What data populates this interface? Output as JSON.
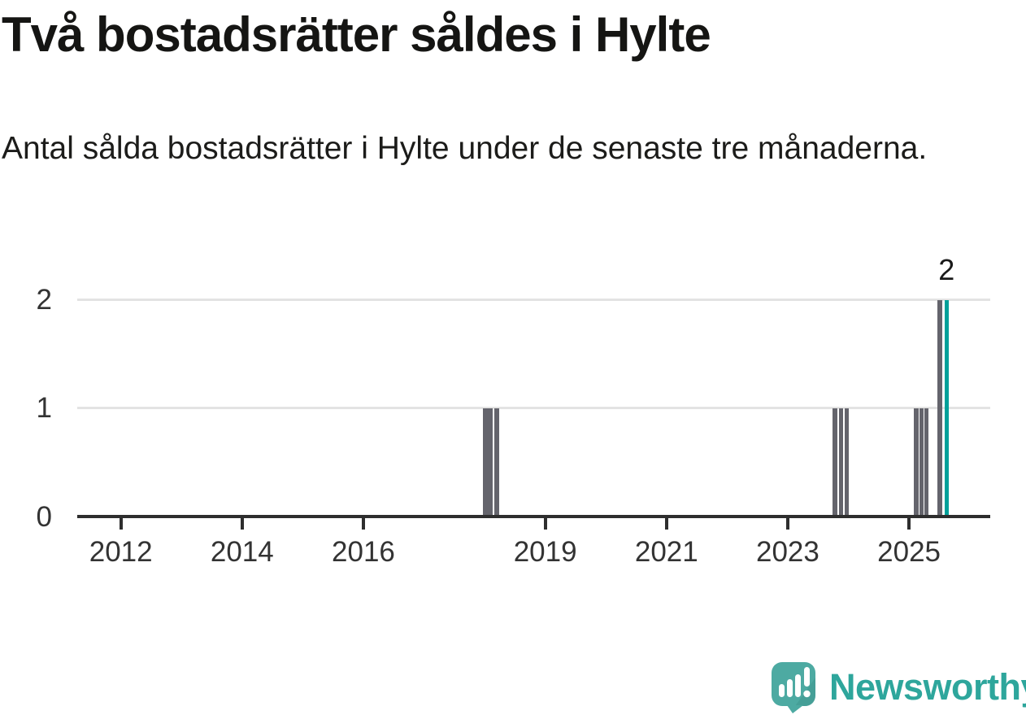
{
  "header": {
    "title": "Två bostadsrätter såldes i Hylte",
    "subtitle": "Antal sålda bostadsrätter i Hylte under de senaste tre månaderna."
  },
  "chart_data": {
    "type": "bar",
    "title": "Två bostadsrätter såldes i Hylte",
    "subtitle": "Antal sålda bostadsrätter i Hylte under de senaste tre månaderna.",
    "x_range": [
      2011.28,
      2026.34
    ],
    "ylim": [
      0,
      2.37
    ],
    "grid": "horizontal",
    "legend": "none",
    "y_ticks": [
      0,
      1,
      2
    ],
    "x_tick_labels": [
      "2012",
      "2014",
      "2016",
      "2019",
      "2021",
      "2023",
      "2025"
    ],
    "x_tick_years": [
      2012,
      2014,
      2016,
      2019,
      2021,
      2023,
      2025
    ],
    "bars": [
      {
        "x_year": 2018.05,
        "months": 2,
        "value": 1,
        "highlight": false
      },
      {
        "x_year": 2018.2,
        "months": 1,
        "value": 1,
        "highlight": false
      },
      {
        "x_year": 2023.78,
        "months": 1,
        "value": 1,
        "highlight": false
      },
      {
        "x_year": 2023.88,
        "months": 1,
        "value": 1,
        "highlight": false
      },
      {
        "x_year": 2023.97,
        "months": 1,
        "value": 1,
        "highlight": false
      },
      {
        "x_year": 2025.12,
        "months": 1,
        "value": 1,
        "highlight": false
      },
      {
        "x_year": 2025.21,
        "months": 1,
        "value": 1,
        "highlight": false
      },
      {
        "x_year": 2025.29,
        "months": 1,
        "value": 1,
        "highlight": false
      },
      {
        "x_year": 2025.51,
        "months": 1,
        "value": 2,
        "highlight": false
      },
      {
        "x_year": 2025.62,
        "months": 1,
        "value": 2,
        "highlight": true
      }
    ],
    "annotation": {
      "text": "2",
      "x_year": 2025.62,
      "value": 2
    },
    "colors": {
      "bar": "#64646c",
      "highlight": "#00a099",
      "grid": "#e3e3e3",
      "axis": "#2e2e2e",
      "tick_label": "#333333"
    }
  },
  "footer": {
    "brand": "Newsworthy",
    "brand_text_color": "#2ea69c",
    "logo_bubble_color": "#4daaa2",
    "logo_shade_color": "#3f968e"
  }
}
